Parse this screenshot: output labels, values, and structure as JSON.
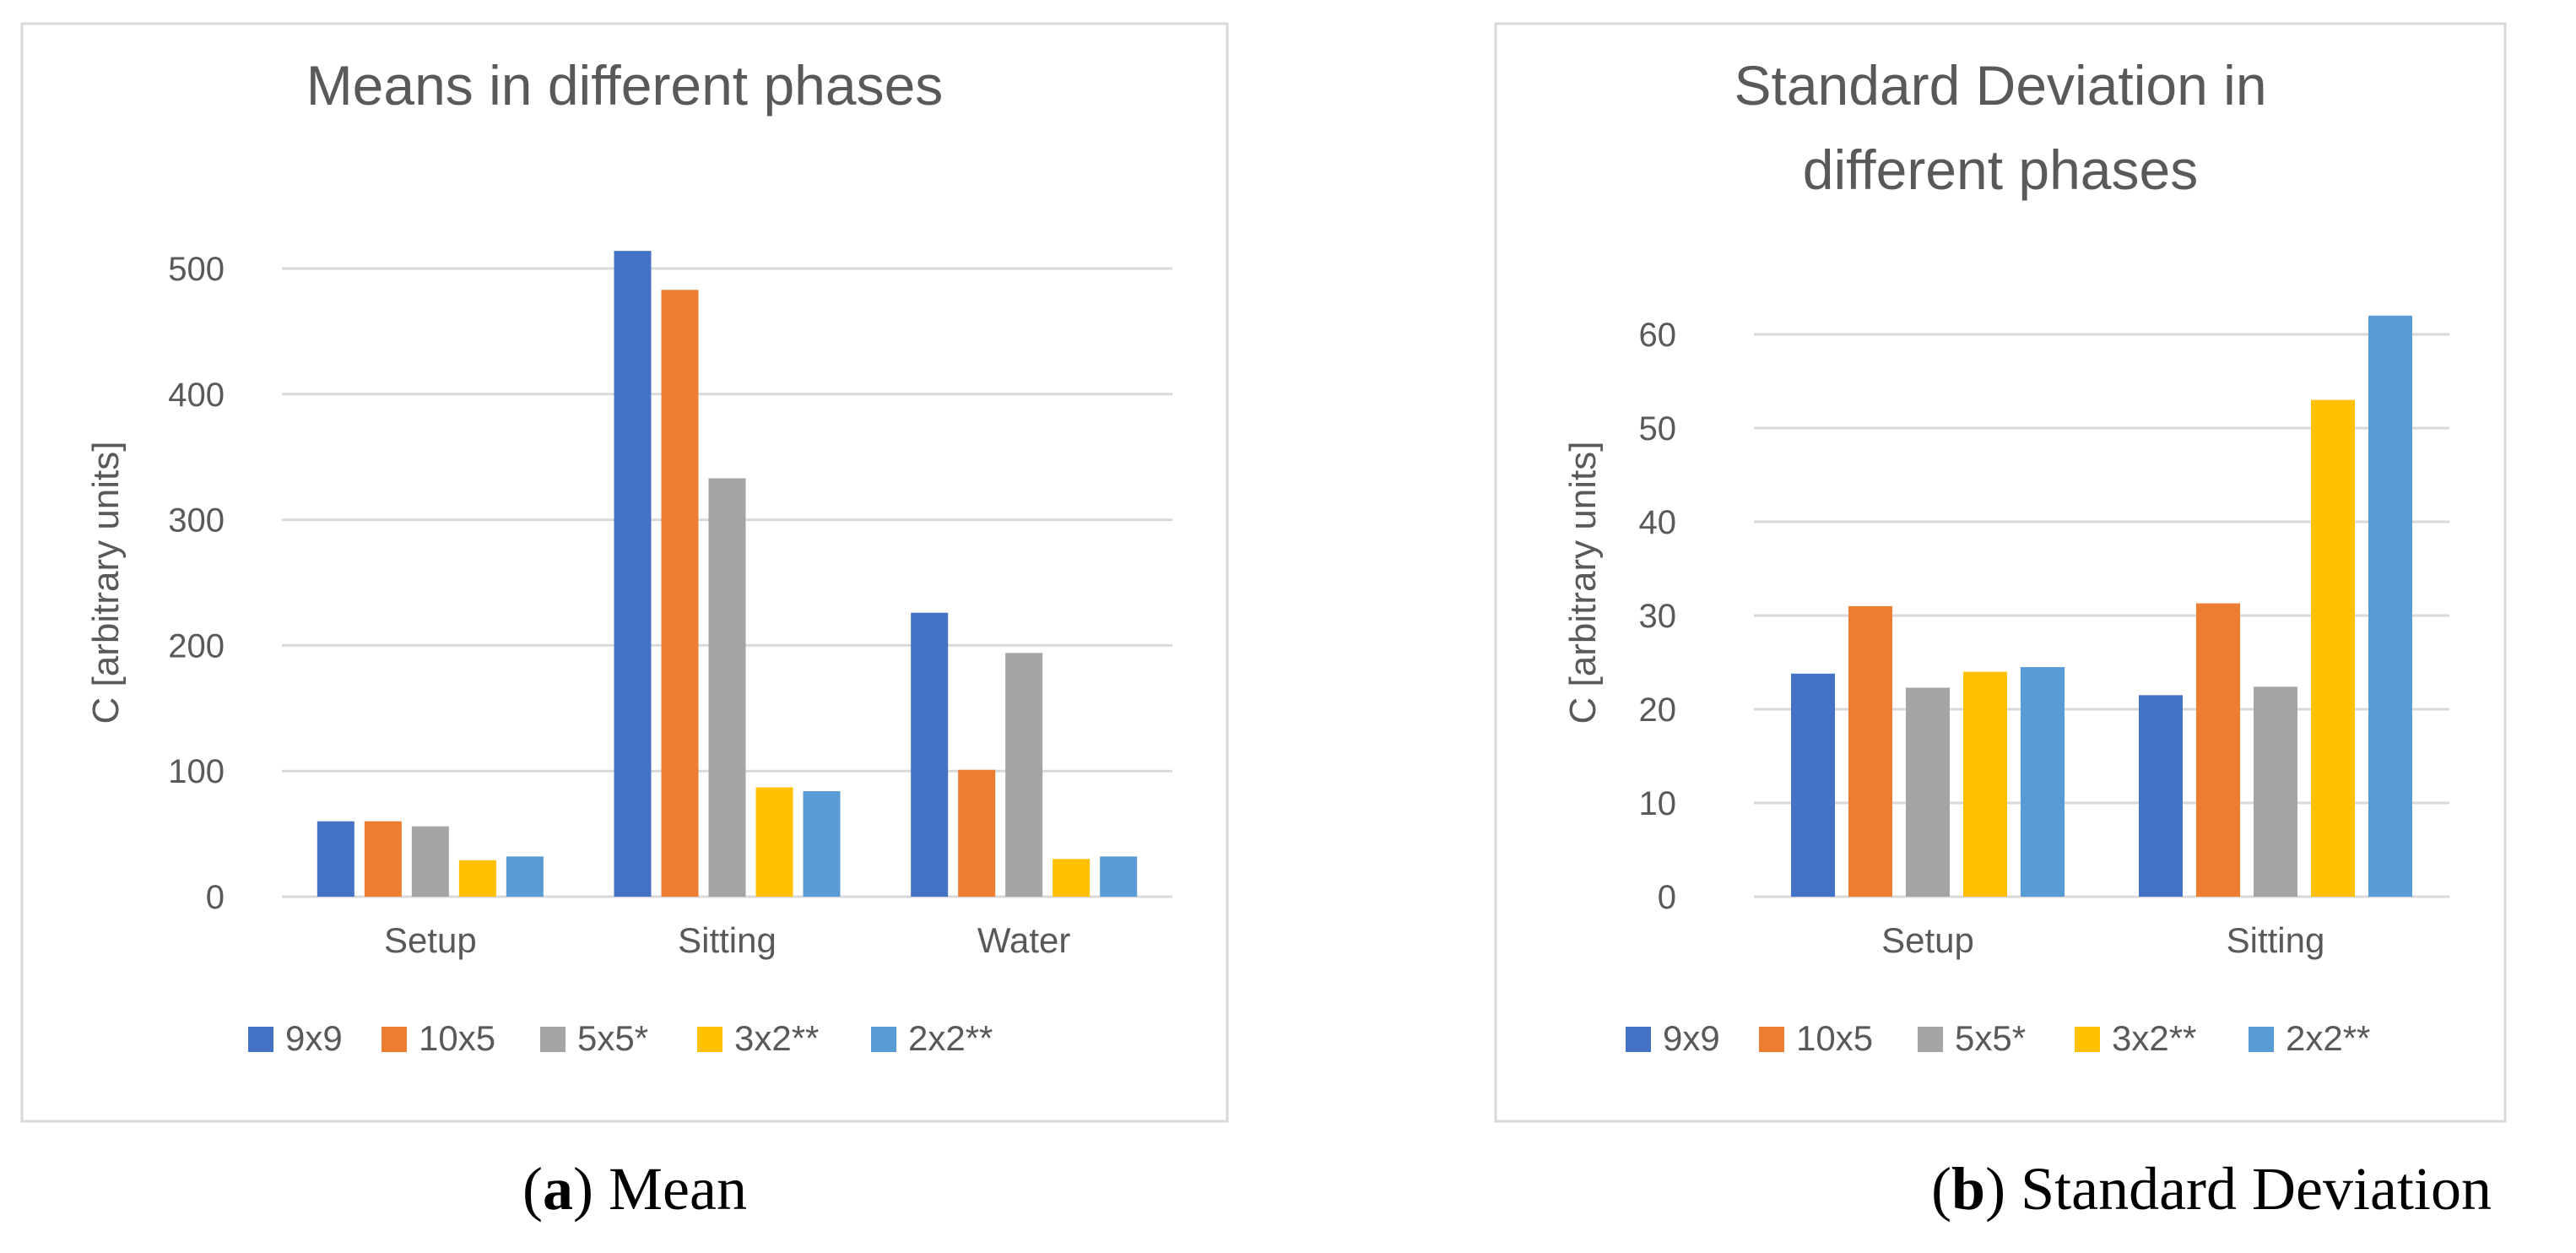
{
  "chart_data": [
    {
      "type": "bar",
      "title": "Means in different phases",
      "ylabel": "C [arbitrary units]",
      "xlabel": "",
      "categories": [
        "Setup",
        "Sitting",
        "Water"
      ],
      "ylim": [
        0,
        500
      ],
      "yticks": [
        0,
        100,
        200,
        300,
        400,
        500
      ],
      "grid": true,
      "legend_position": "bottom",
      "series": [
        {
          "name": "9x9",
          "color": "#4472C4",
          "values": [
            60,
            514,
            226
          ]
        },
        {
          "name": "10x5",
          "color": "#ED7D31",
          "values": [
            60,
            483,
            101
          ]
        },
        {
          "name": "5x5*",
          "color": "#A5A5A5",
          "values": [
            56,
            333,
            194
          ]
        },
        {
          "name": "3x2**",
          "color": "#FFC000",
          "values": [
            29,
            87,
            30
          ]
        },
        {
          "name": "2x2**",
          "color": "#5B9BD5",
          "values": [
            32,
            84,
            32
          ]
        }
      ],
      "caption": {
        "letter": "a",
        "text": "Mean"
      }
    },
    {
      "type": "bar",
      "title": "Standard Deviation in different phases",
      "ylabel": "C [arbitrary units]",
      "xlabel": "",
      "categories": [
        "Setup",
        "Sitting"
      ],
      "ylim": [
        0,
        60
      ],
      "yticks": [
        0,
        10,
        20,
        30,
        40,
        50,
        60
      ],
      "grid": true,
      "legend_position": "bottom",
      "series": [
        {
          "name": "9x9",
          "color": "#4472C4",
          "values": [
            23.8,
            21.5
          ]
        },
        {
          "name": "10x5",
          "color": "#ED7D31",
          "values": [
            31,
            31.3
          ]
        },
        {
          "name": "5x5*",
          "color": "#A5A5A5",
          "values": [
            22.3,
            22.4
          ]
        },
        {
          "name": "3x2**",
          "color": "#FFC000",
          "values": [
            24,
            53
          ]
        },
        {
          "name": "2x2**",
          "color": "#5B9BD5",
          "values": [
            24.5,
            62
          ]
        }
      ],
      "caption": {
        "letter": "b",
        "text": "Standard Deviation"
      }
    }
  ]
}
